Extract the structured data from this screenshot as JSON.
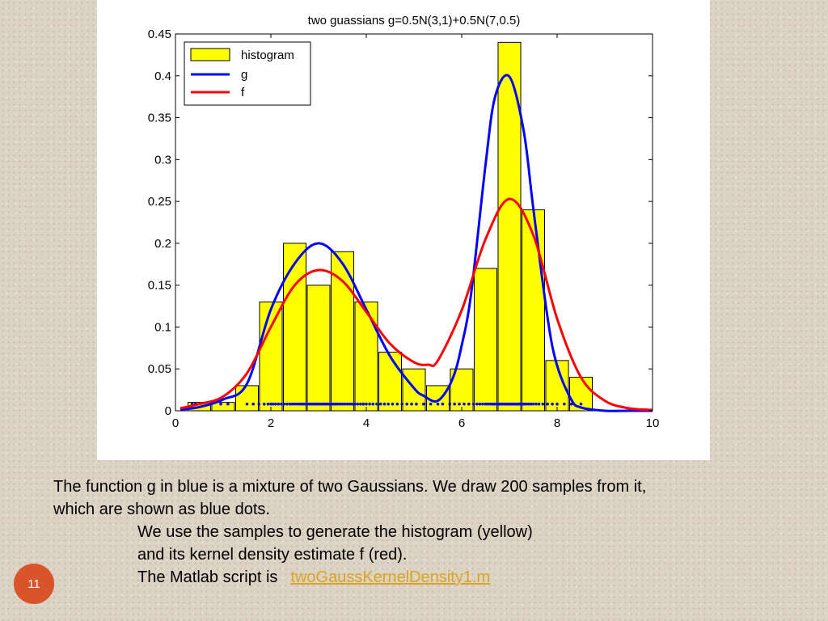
{
  "slide": {
    "number": "11"
  },
  "caption": {
    "line1": "The function g in blue is a mixture of two Gaussians. We draw 200 samples from it,",
    "line2": "which are shown as blue dots.",
    "line3": "We use the samples to generate the histogram (yellow)",
    "line4": "and its kernel density estimate f (red).",
    "line5_prefix": "The Matlab script is",
    "script_link": "twoGaussKernelDensity1.m"
  },
  "chart_data": {
    "type": "bar",
    "title": "two guassians g=0.5N(3,1)+0.5N(7,0.5)",
    "xlabel": "",
    "ylabel": "",
    "xlim": [
      0,
      10
    ],
    "ylim": [
      0,
      0.45
    ],
    "xticks": [
      0,
      2,
      4,
      6,
      8,
      10
    ],
    "yticks": [
      0,
      0.05,
      0.1,
      0.15,
      0.2,
      0.25,
      0.3,
      0.35,
      0.4,
      0.45
    ],
    "legend_placement": "top-left",
    "grid": false,
    "colors": {
      "histogram": "#ffff00",
      "g": "#0000ff",
      "f": "#ff0000",
      "samples": "#0000ff"
    },
    "histogram": {
      "name": "histogram",
      "bin_width": 0.5,
      "bin_centers": [
        0.5,
        1.0,
        1.5,
        2.0,
        2.5,
        3.0,
        3.5,
        4.0,
        4.5,
        5.0,
        5.5,
        6.0,
        6.5,
        7.0,
        7.5,
        8.0,
        8.5
      ],
      "values": [
        0.01,
        0.01,
        0.03,
        0.13,
        0.2,
        0.15,
        0.19,
        0.13,
        0.07,
        0.05,
        0.03,
        0.05,
        0.17,
        0.44,
        0.24,
        0.06,
        0.04
      ]
    },
    "series": [
      {
        "name": "g",
        "x": [
          0.1,
          0.5,
          1.0,
          1.5,
          2.0,
          2.5,
          3.0,
          3.5,
          4.0,
          4.5,
          5.0,
          5.2,
          5.5,
          5.8,
          6.0,
          6.2,
          6.5,
          6.7,
          7.0,
          7.3,
          7.5,
          7.8,
          8.0,
          8.3,
          8.5,
          9.0,
          9.5,
          10.0
        ],
        "y": [
          0.0015,
          0.0044,
          0.0135,
          0.0324,
          0.121,
          0.176,
          0.2,
          0.176,
          0.121,
          0.065,
          0.027,
          0.018,
          0.012,
          0.037,
          0.078,
          0.141,
          0.294,
          0.375,
          0.399,
          0.334,
          0.242,
          0.111,
          0.054,
          0.013,
          0.004,
          0.0,
          0.0,
          0.0
        ]
      },
      {
        "name": "f",
        "x": [
          0.1,
          0.5,
          1.0,
          1.5,
          2.0,
          2.5,
          3.0,
          3.5,
          4.0,
          4.5,
          5.0,
          5.3,
          5.5,
          6.0,
          6.5,
          7.0,
          7.5,
          8.0,
          8.5,
          9.0,
          9.5,
          10.0
        ],
        "y": [
          0.003,
          0.008,
          0.017,
          0.045,
          0.1,
          0.15,
          0.168,
          0.155,
          0.118,
          0.08,
          0.058,
          0.055,
          0.06,
          0.12,
          0.205,
          0.253,
          0.21,
          0.11,
          0.04,
          0.012,
          0.003,
          0.001
        ]
      }
    ],
    "samples": {
      "name": "samples",
      "y": 0.008,
      "x": [
        0.35,
        0.42,
        0.95,
        1.1,
        1.5,
        1.63,
        1.75,
        1.86,
        1.94,
        2.0,
        2.05,
        2.1,
        2.16,
        2.22,
        2.28,
        2.34,
        2.4,
        2.45,
        2.5,
        2.55,
        2.6,
        2.64,
        2.68,
        2.72,
        2.76,
        2.8,
        2.84,
        2.88,
        2.92,
        2.96,
        3.0,
        3.04,
        3.08,
        3.12,
        3.16,
        3.2,
        3.24,
        3.28,
        3.32,
        3.36,
        3.4,
        3.45,
        3.5,
        3.55,
        3.6,
        3.65,
        3.7,
        3.76,
        3.82,
        3.88,
        3.94,
        4.0,
        4.07,
        4.14,
        4.22,
        4.3,
        4.38,
        4.46,
        4.55,
        4.65,
        4.75,
        4.85,
        4.95,
        5.05,
        5.2,
        5.35,
        5.5,
        5.6,
        5.75,
        5.85,
        5.95,
        6.05,
        6.15,
        6.25,
        6.32,
        6.38,
        6.44,
        6.5,
        6.55,
        6.6,
        6.64,
        6.68,
        6.72,
        6.75,
        6.78,
        6.81,
        6.84,
        6.87,
        6.9,
        6.93,
        6.96,
        6.99,
        7.02,
        7.05,
        7.08,
        7.11,
        7.14,
        7.17,
        7.2,
        7.23,
        7.27,
        7.31,
        7.35,
        7.4,
        7.45,
        7.5,
        7.56,
        7.62,
        7.7,
        7.8,
        7.9,
        8.0,
        8.15,
        8.3,
        8.5
      ]
    }
  }
}
